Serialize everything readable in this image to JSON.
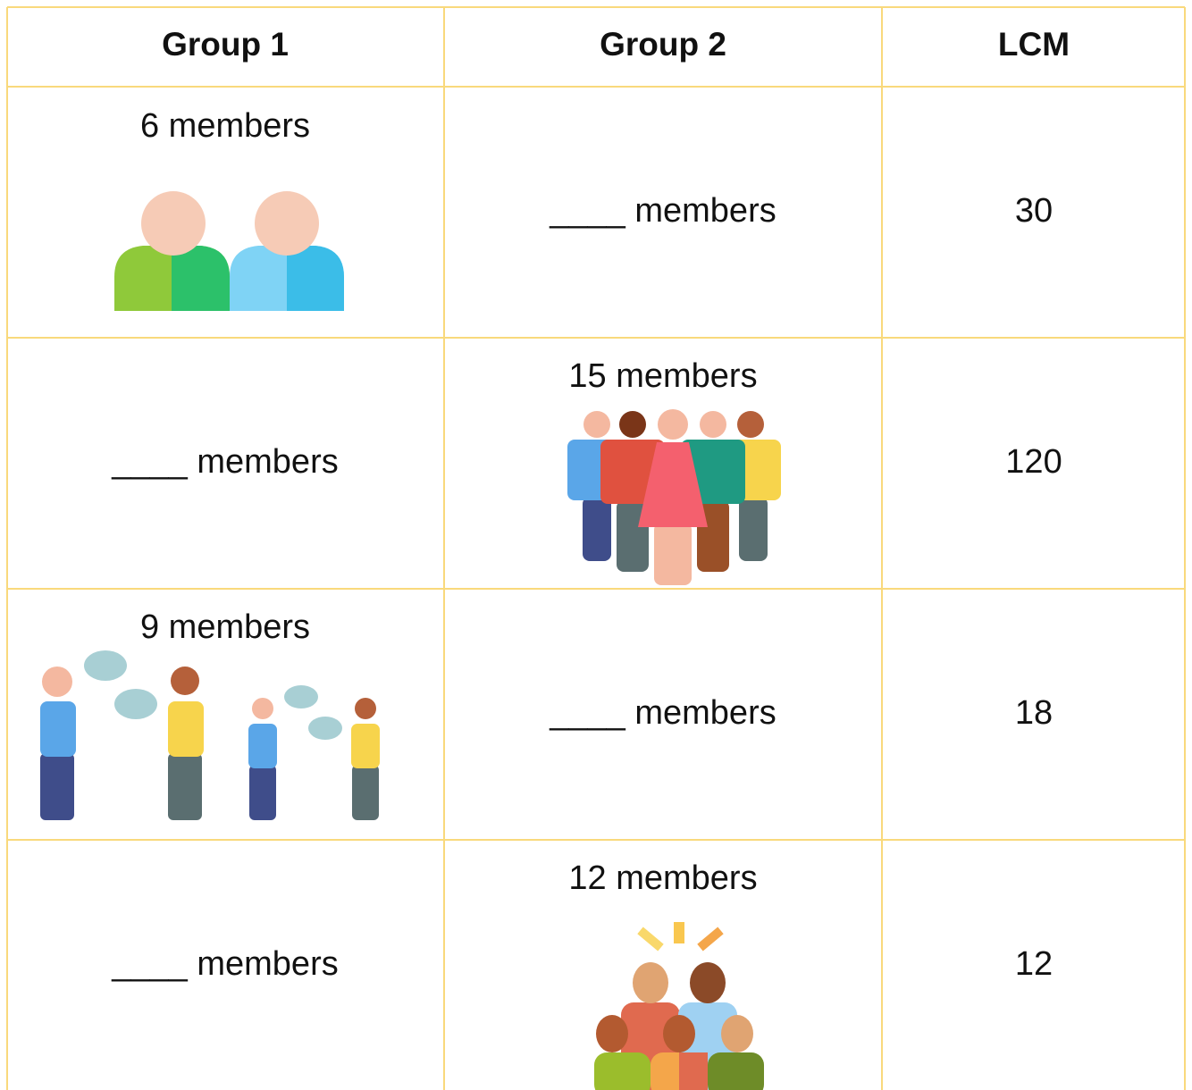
{
  "table": {
    "header": [
      "Group 1",
      "Group 2",
      "LCM"
    ],
    "rows": [
      [
        "6 members",
        "____ members",
        "30"
      ],
      [
        "____ members",
        "15 members",
        "120"
      ],
      [
        "9 members",
        "____ members",
        "18"
      ],
      [
        "____ members",
        "12 members",
        "12"
      ]
    ]
  }
}
